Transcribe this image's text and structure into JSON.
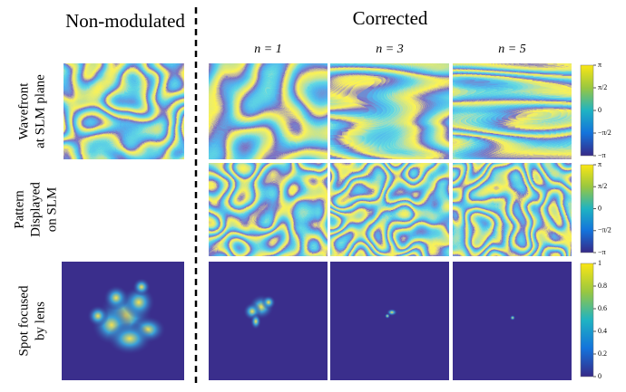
{
  "header": {
    "left": "Non-modulated",
    "right": "Corrected"
  },
  "columns": [
    "n = 1",
    "n = 3",
    "n = 5"
  ],
  "rows": [
    {
      "label": [
        "Wavefront",
        "at SLM plane"
      ]
    },
    {
      "label": [
        "Pattern",
        "Displayed",
        "on SLM"
      ]
    },
    {
      "label": [
        "Spot focused",
        "by  lens"
      ]
    }
  ],
  "colorbars": [
    {
      "ticks": [
        "π",
        "π/2",
        "0",
        "−π/2",
        "−π"
      ]
    },
    {
      "ticks": [
        "π",
        "π/2",
        "0",
        "−π/2",
        "−π"
      ]
    },
    {
      "ticks": [
        "1",
        "0.8",
        "0.6",
        "0.4",
        "0.2",
        "0"
      ]
    }
  ]
}
